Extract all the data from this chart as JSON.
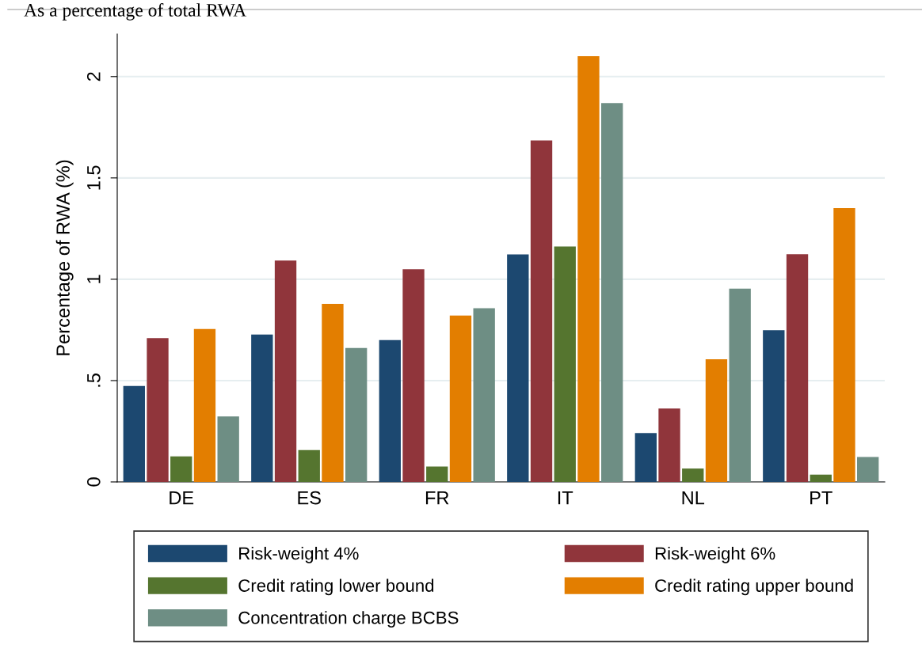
{
  "chart_data": {
    "type": "bar",
    "title": "As a percentage of total RWA",
    "ylabel": "Percentage of RWA (%)",
    "categories": [
      "DE",
      "ES",
      "FR",
      "IT",
      "NL",
      "PT"
    ],
    "series": [
      {
        "name": "Risk-weight 4%",
        "color": "#1c4870",
        "values": [
          0.473,
          0.727,
          0.7,
          1.123,
          0.241,
          0.749
        ]
      },
      {
        "name": "Risk-weight 6%",
        "color": "#90353b",
        "values": [
          0.71,
          1.092,
          1.049,
          1.685,
          0.362,
          1.124
        ]
      },
      {
        "name": "Credit rating lower bound",
        "color": "#55752f",
        "values": [
          0.126,
          0.157,
          0.076,
          1.162,
          0.066,
          0.036
        ]
      },
      {
        "name": "Credit rating upper bound",
        "color": "#e37e00",
        "values": [
          0.755,
          0.879,
          0.821,
          2.101,
          0.605,
          1.351
        ]
      },
      {
        "name": "Concentration charge BCBS",
        "color": "#6e8e84",
        "values": [
          0.323,
          0.661,
          0.857,
          1.869,
          0.954,
          0.123
        ]
      }
    ],
    "ylim": [
      0,
      2.21
    ],
    "yticks": [
      0,
      {
        "value": 0.5,
        "label": ".5"
      },
      1,
      1.5,
      2
    ],
    "grid": "y",
    "legend": "bottom"
  }
}
